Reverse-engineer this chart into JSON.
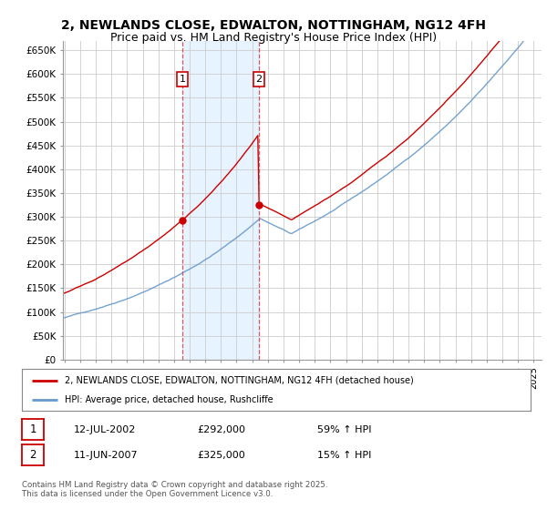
{
  "title": "2, NEWLANDS CLOSE, EDWALTON, NOTTINGHAM, NG12 4FH",
  "subtitle": "Price paid vs. HM Land Registry's House Price Index (HPI)",
  "ylim": [
    0,
    670000
  ],
  "yticks": [
    0,
    50000,
    100000,
    150000,
    200000,
    250000,
    300000,
    350000,
    400000,
    450000,
    500000,
    550000,
    600000,
    650000
  ],
  "ytick_labels": [
    "£0",
    "£50K",
    "£100K",
    "£150K",
    "£200K",
    "£250K",
    "£300K",
    "£350K",
    "£400K",
    "£450K",
    "£500K",
    "£550K",
    "£600K",
    "£650K"
  ],
  "xlim_start": 1994.9,
  "xlim_end": 2025.5,
  "background_color": "#ffffff",
  "plot_bg_color": "#ffffff",
  "grid_color": "#cccccc",
  "hpi_line_color": "#6699cc",
  "price_line_color": "#cc0000",
  "sale1_x": 2002.53,
  "sale1_y": 292000,
  "sale2_x": 2007.44,
  "sale2_y": 325000,
  "vline_color": "#dd4444",
  "shade_color": "#ddeeff",
  "legend_entry1": "2, NEWLANDS CLOSE, EDWALTON, NOTTINGHAM, NG12 4FH (detached house)",
  "legend_entry2": "HPI: Average price, detached house, Rushcliffe",
  "table_row1_num": "1",
  "table_row1_date": "12-JUL-2002",
  "table_row1_price": "£292,000",
  "table_row1_hpi": "59% ↑ HPI",
  "table_row2_num": "2",
  "table_row2_date": "11-JUN-2007",
  "table_row2_price": "£325,000",
  "table_row2_hpi": "15% ↑ HPI",
  "footer": "Contains HM Land Registry data © Crown copyright and database right 2025.\nThis data is licensed under the Open Government Licence v3.0.",
  "title_fontsize": 10,
  "subtitle_fontsize": 9
}
